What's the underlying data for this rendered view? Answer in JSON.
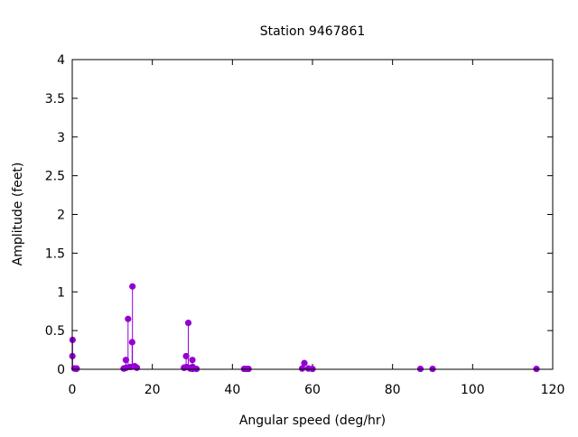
{
  "chart_data": {
    "type": "scatter",
    "style": "impulses-with-points",
    "title": "Station 9467861",
    "xlabel": "Angular speed (deg/hr)",
    "ylabel": "Amplitude (feet)",
    "xlim": [
      0,
      120
    ],
    "ylim": [
      0,
      4
    ],
    "xticks": [
      "0",
      "20",
      "40",
      "60",
      "80",
      "100",
      "120"
    ],
    "yticks": [
      "0",
      "0.5",
      "1",
      "1.5",
      "2",
      "2.5",
      "3",
      "3.5",
      "4"
    ],
    "grid": false,
    "color": "#9400d3",
    "points": [
      [
        0.041,
        0.17
      ],
      [
        0.082,
        0.38
      ],
      [
        0.544,
        0.01
      ],
      [
        1.016,
        0.005
      ],
      [
        1.098,
        0.01
      ],
      [
        12.85,
        0.01
      ],
      [
        12.93,
        0.01
      ],
      [
        13.4,
        0.12
      ],
      [
        13.47,
        0.02
      ],
      [
        13.94,
        0.65
      ],
      [
        14.5,
        0.03
      ],
      [
        14.96,
        0.35
      ],
      [
        15.04,
        1.07
      ],
      [
        15.59,
        0.04
      ],
      [
        16.14,
        0.02
      ],
      [
        27.9,
        0.02
      ],
      [
        27.97,
        0.02
      ],
      [
        28.44,
        0.17
      ],
      [
        28.51,
        0.03
      ],
      [
        28.98,
        0.6
      ],
      [
        29.46,
        0.01
      ],
      [
        29.53,
        0.02
      ],
      [
        29.96,
        0.01
      ],
      [
        30.0,
        0.12
      ],
      [
        30.04,
        0.005
      ],
      [
        30.08,
        0.03
      ],
      [
        31.02,
        0.005
      ],
      [
        42.93,
        0.005
      ],
      [
        43.48,
        0.005
      ],
      [
        44.03,
        0.005
      ],
      [
        57.42,
        0.01
      ],
      [
        57.97,
        0.08
      ],
      [
        58.98,
        0.01
      ],
      [
        60.0,
        0.005
      ],
      [
        86.95,
        0.005
      ],
      [
        90.0,
        0.005
      ],
      [
        115.94,
        0.005
      ]
    ]
  }
}
